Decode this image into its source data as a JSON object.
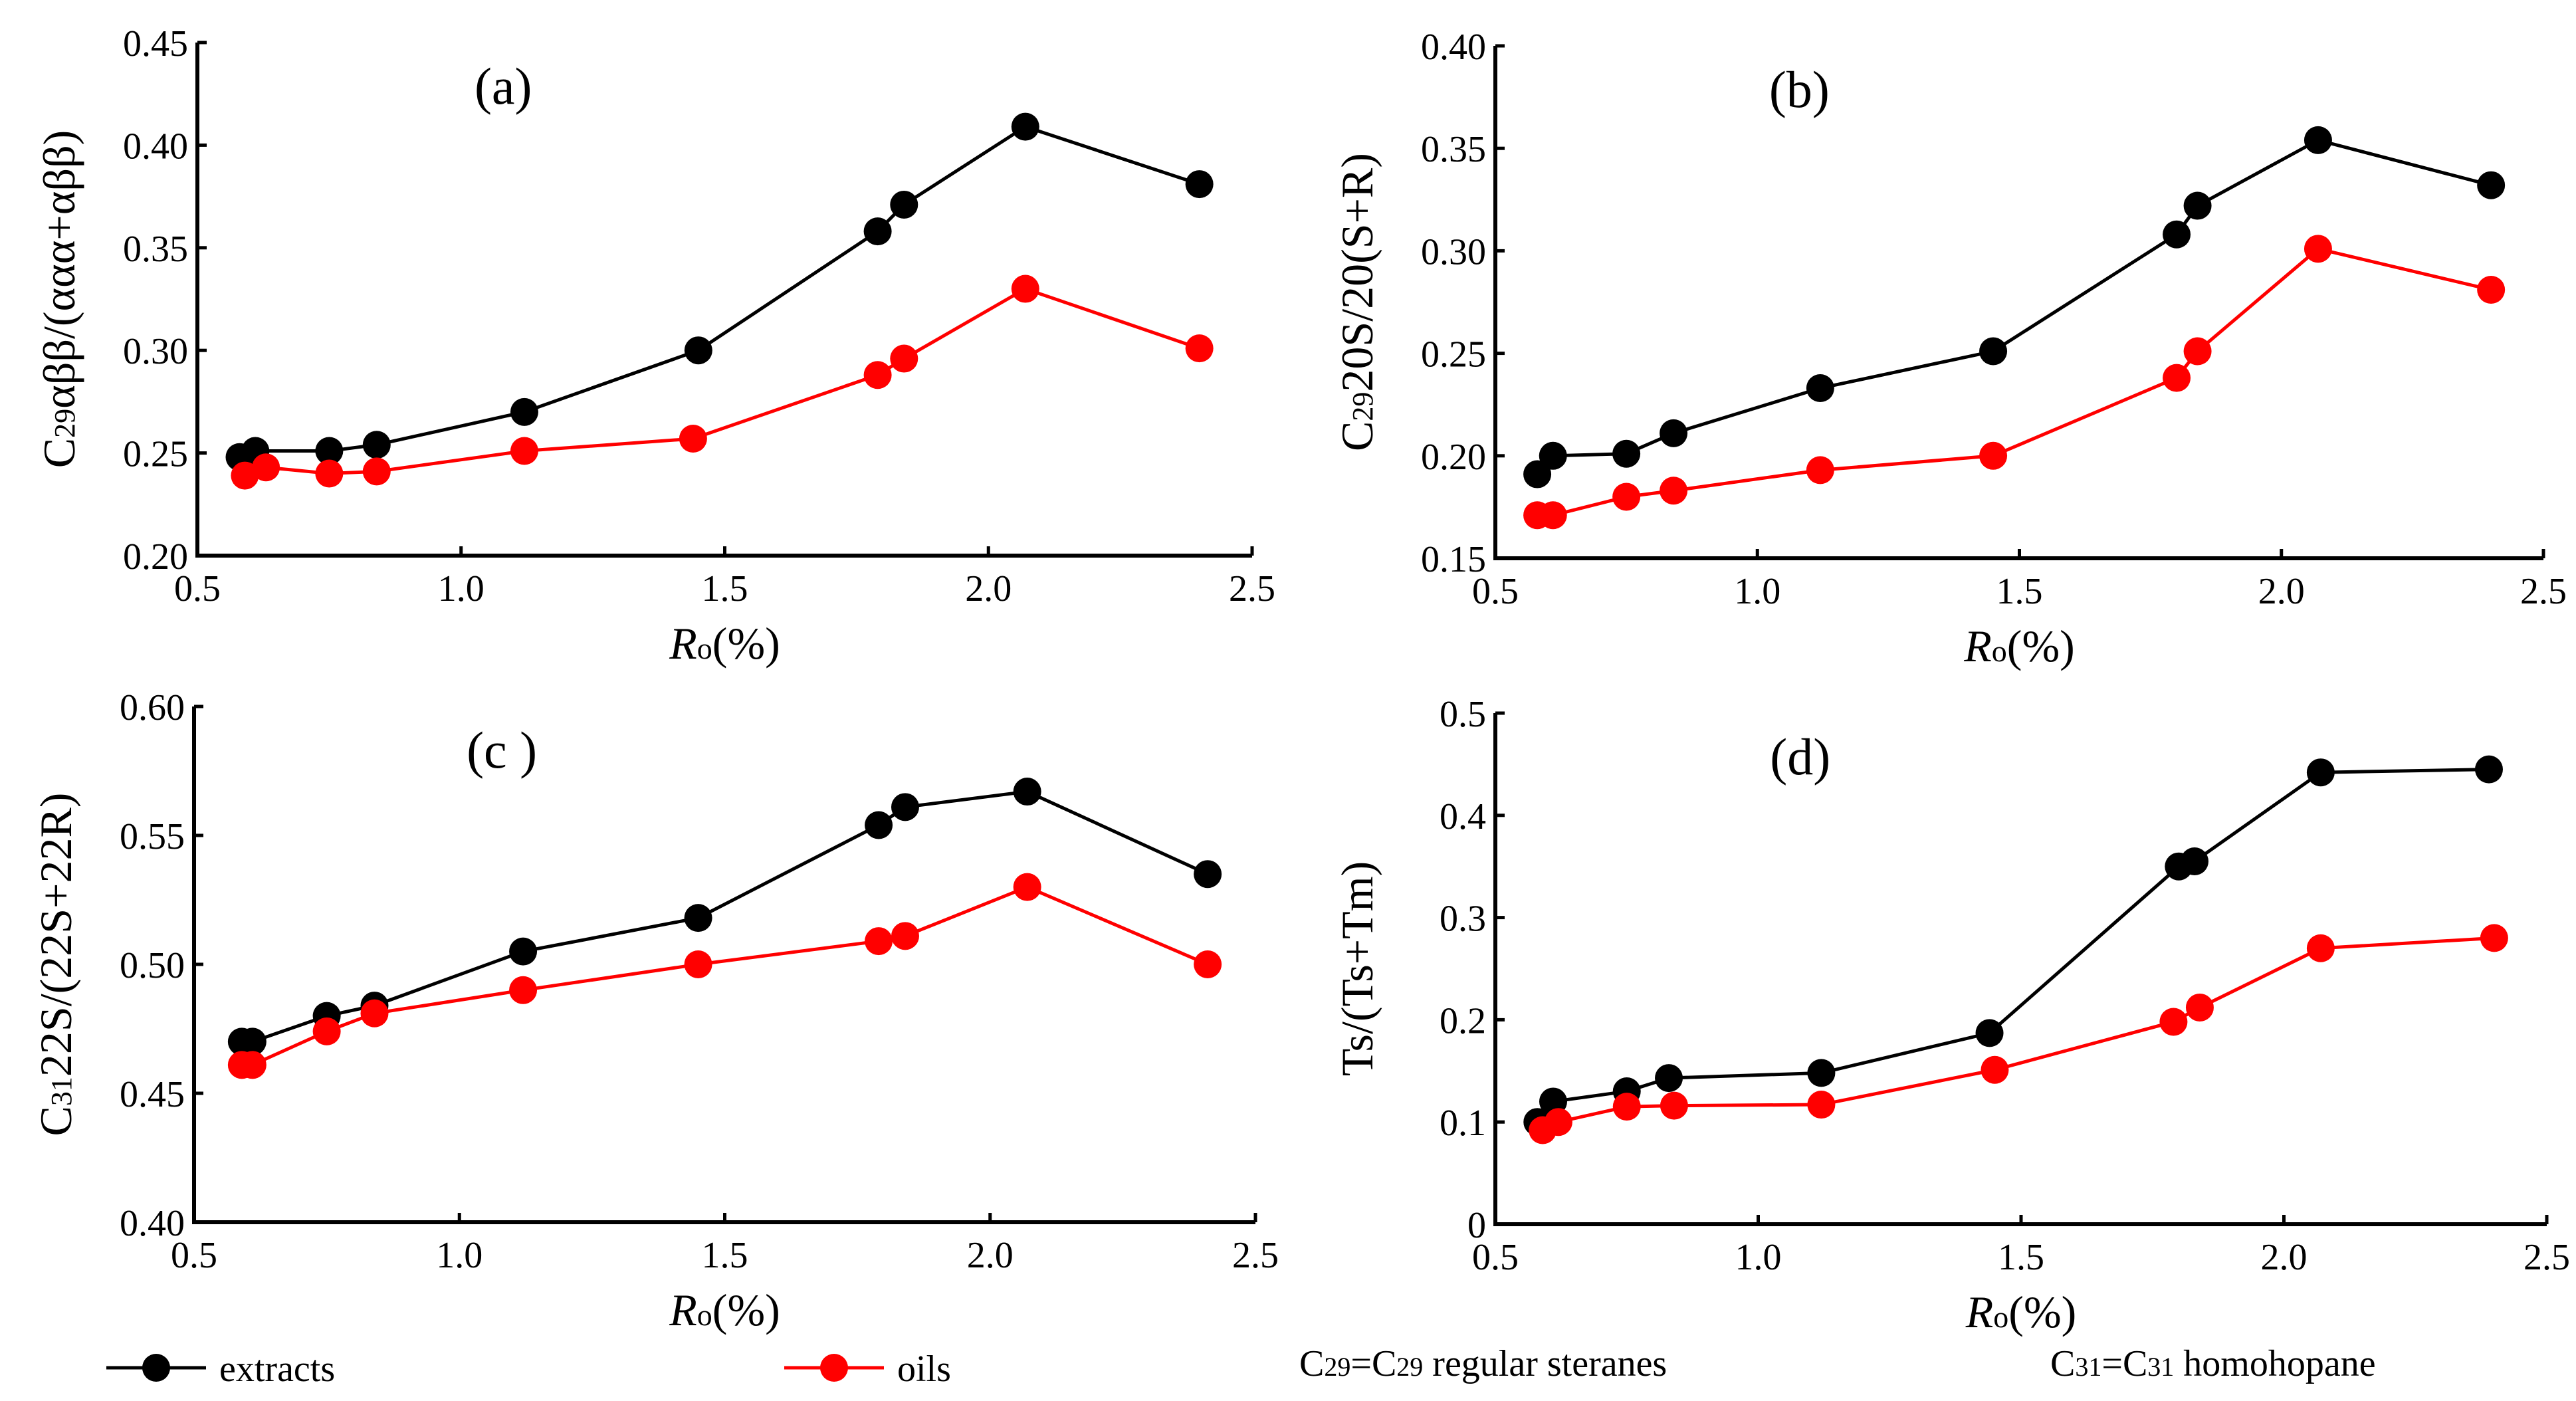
{
  "chart_data": [
    {
      "type": "line",
      "title": "(a)",
      "xlabel": {
        "italic": "R",
        "sub": "o",
        "rest": "(%)"
      },
      "ylabel": {
        "pre": "C",
        "sub": "29",
        "rest": "αββ/(ααα+αββ)"
      },
      "xlim": [
        0.5,
        2.5
      ],
      "xticks": [
        "0.5",
        "1.0",
        "1.5",
        "2.0",
        "2.5"
      ],
      "ylim": [
        0.2,
        0.45
      ],
      "yticks": [
        "0.20",
        "0.25",
        "0.30",
        "0.35",
        "0.40",
        "0.45"
      ],
      "series": [
        {
          "name": "extracts",
          "color": "#000000",
          "x": [
            0.58,
            0.61,
            0.75,
            0.84,
            1.12,
            1.45,
            1.79,
            1.84,
            2.07,
            2.4
          ],
          "y": [
            0.248,
            0.251,
            0.251,
            0.254,
            0.27,
            0.3,
            0.358,
            0.371,
            0.409,
            0.381
          ]
        },
        {
          "name": "oils",
          "color": "#ff0000",
          "x": [
            0.59,
            0.63,
            0.75,
            0.84,
            1.12,
            1.44,
            1.79,
            1.84,
            2.07,
            2.4
          ],
          "y": [
            0.239,
            0.243,
            0.24,
            0.241,
            0.251,
            0.257,
            0.288,
            0.296,
            0.33,
            0.301
          ]
        }
      ]
    },
    {
      "type": "line",
      "title": "(b)",
      "xlabel": {
        "italic": "R",
        "sub": "o",
        "rest": "(%)"
      },
      "ylabel": {
        "pre": "C",
        "sub": "29",
        "rest": "20S/20(S+R)"
      },
      "xlim": [
        0.5,
        2.5
      ],
      "xticks": [
        "0.5",
        "1.0",
        "1.5",
        "2.0",
        "2.5"
      ],
      "ylim": [
        0.15,
        0.4
      ],
      "yticks": [
        "0.15",
        "0.20",
        "0.25",
        "0.30",
        "0.35",
        "0.40"
      ],
      "series": [
        {
          "name": "extracts",
          "color": "#000000",
          "x": [
            0.58,
            0.61,
            0.75,
            0.84,
            1.12,
            1.45,
            1.8,
            1.84,
            2.07,
            2.4
          ],
          "y": [
            0.191,
            0.2,
            0.201,
            0.211,
            0.233,
            0.251,
            0.308,
            0.322,
            0.354,
            0.332
          ]
        },
        {
          "name": "oils",
          "color": "#ff0000",
          "x": [
            0.58,
            0.61,
            0.75,
            0.84,
            1.12,
            1.45,
            1.8,
            1.84,
            2.07,
            2.4
          ],
          "y": [
            0.171,
            0.171,
            0.18,
            0.183,
            0.193,
            0.2,
            0.238,
            0.251,
            0.301,
            0.281
          ]
        }
      ]
    },
    {
      "type": "line",
      "title": "(c )",
      "xlabel": {
        "italic": "R",
        "sub": "o",
        "rest": "(%)"
      },
      "ylabel": {
        "pre": "C",
        "sub": "31",
        "rest": "22S/(22S+22R)"
      },
      "xlim": [
        0.5,
        2.5
      ],
      "xticks": [
        "0.5",
        "1.0",
        "1.5",
        "2.0",
        "2.5"
      ],
      "ylim": [
        0.4,
        0.6
      ],
      "yticks": [
        "0.40",
        "0.45",
        "0.50",
        "0.55",
        "0.60"
      ],
      "series": [
        {
          "name": "extracts",
          "color": "#000000",
          "x": [
            0.59,
            0.61,
            0.75,
            0.84,
            1.12,
            1.45,
            1.79,
            1.84,
            2.07,
            2.41
          ],
          "y": [
            0.47,
            0.47,
            0.48,
            0.484,
            0.505,
            0.518,
            0.554,
            0.561,
            0.567,
            0.535
          ]
        },
        {
          "name": "oils",
          "color": "#ff0000",
          "x": [
            0.59,
            0.61,
            0.75,
            0.84,
            1.12,
            1.45,
            1.79,
            1.84,
            2.07,
            2.41
          ],
          "y": [
            0.461,
            0.461,
            0.474,
            0.481,
            0.49,
            0.5,
            0.509,
            0.511,
            0.53,
            0.5
          ]
        }
      ]
    },
    {
      "type": "line",
      "title": "(d)",
      "xlabel": {
        "italic": "R",
        "sub": "o",
        "rest": "(%)"
      },
      "ylabel": {
        "pre": "Ts/(Ts+Tm)",
        "sub": "",
        "rest": ""
      },
      "xlim": [
        0.5,
        2.5
      ],
      "xticks": [
        "0.5",
        "1.0",
        "1.5",
        "2.0",
        "2.5"
      ],
      "ylim": [
        0,
        0.5
      ],
      "yticks": [
        "0",
        "0.1",
        "0.2",
        "0.3",
        "0.4",
        "0.5"
      ],
      "series": [
        {
          "name": "extracts",
          "color": "#000000",
          "x": [
            0.58,
            0.61,
            0.75,
            0.83,
            1.12,
            1.44,
            1.8,
            1.83,
            2.07,
            2.39
          ],
          "y": [
            0.1,
            0.12,
            0.13,
            0.143,
            0.148,
            0.187,
            0.35,
            0.355,
            0.442,
            0.445
          ]
        },
        {
          "name": "oils",
          "color": "#ff0000",
          "x": [
            0.59,
            0.62,
            0.75,
            0.84,
            1.12,
            1.45,
            1.79,
            1.84,
            2.07,
            2.4
          ],
          "y": [
            0.092,
            0.1,
            0.115,
            0.116,
            0.117,
            0.151,
            0.198,
            0.212,
            0.27,
            0.28
          ]
        }
      ]
    }
  ],
  "legend": {
    "items": [
      {
        "label": "extracts",
        "color": "#000000"
      },
      {
        "label": "oils",
        "color": "#ff0000"
      }
    ],
    "notes": [
      {
        "pre": "C",
        "sub": "29",
        "mid": "=C",
        "sub2": "29",
        "rest": " regular steranes"
      },
      {
        "pre": "C",
        "sub": "31",
        "mid": "=C",
        "sub2": "31",
        "rest": " homohopane"
      }
    ]
  }
}
